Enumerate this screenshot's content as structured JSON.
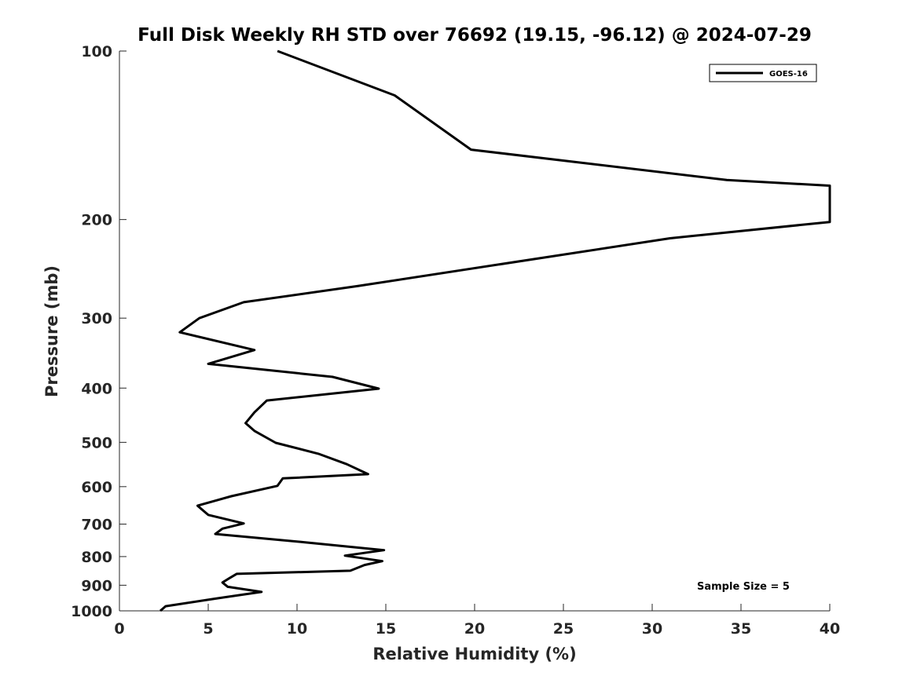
{
  "chart_data": {
    "type": "line",
    "title": "Full Disk Weekly RH STD over 76692 (19.15, -96.12) @ 2024-07-29",
    "xlabel": "Relative Humidity (%)",
    "ylabel": "Pressure (mb)",
    "xlim": [
      0,
      40
    ],
    "ylim": [
      1000,
      100
    ],
    "y_scale": "log",
    "x_ticks": [
      "0",
      "5",
      "10",
      "15",
      "20",
      "25",
      "30",
      "35",
      "40"
    ],
    "x_tick_values": [
      0,
      5,
      10,
      15,
      20,
      25,
      30,
      35,
      40
    ],
    "y_ticks": [
      "100",
      "200",
      "300",
      "400",
      "500",
      "600",
      "700",
      "800",
      "900",
      "1000"
    ],
    "y_tick_values": [
      100,
      200,
      300,
      400,
      500,
      600,
      700,
      800,
      900,
      1000
    ],
    "grid": false,
    "legend_position": "top-right",
    "annotation": "Sample Size = 5",
    "series": [
      {
        "name": "GOES-16",
        "color": "#000000",
        "points": [
          [
            8.9,
            100
          ],
          [
            15.5,
            120
          ],
          [
            19.8,
            150
          ],
          [
            34.2,
            170
          ],
          [
            40.0,
            174
          ],
          [
            40.0,
            202
          ],
          [
            31.0,
            216
          ],
          [
            13.4,
            263
          ],
          [
            7.0,
            281
          ],
          [
            4.5,
            300
          ],
          [
            3.4,
            318
          ],
          [
            7.6,
            342
          ],
          [
            5.0,
            362
          ],
          [
            12.0,
            382
          ],
          [
            14.6,
            401
          ],
          [
            8.3,
            421
          ],
          [
            7.6,
            442
          ],
          [
            7.1,
            462
          ],
          [
            7.6,
            477
          ],
          [
            8.8,
            501
          ],
          [
            11.2,
            524
          ],
          [
            12.8,
            547
          ],
          [
            14.0,
            570
          ],
          [
            9.2,
            580
          ],
          [
            8.9,
            598
          ],
          [
            6.3,
            624
          ],
          [
            4.4,
            649
          ],
          [
            5.0,
            674
          ],
          [
            7.0,
            698
          ],
          [
            5.8,
            713
          ],
          [
            5.4,
            729
          ],
          [
            10.4,
            754
          ],
          [
            14.9,
            779
          ],
          [
            12.7,
            797
          ],
          [
            14.8,
            815
          ],
          [
            13.8,
            828
          ],
          [
            13.0,
            848
          ],
          [
            6.6,
            859
          ],
          [
            6.2,
            874
          ],
          [
            5.8,
            890
          ],
          [
            6.1,
            906
          ],
          [
            8.0,
            925
          ],
          [
            5.5,
            950
          ],
          [
            2.6,
            981
          ],
          [
            2.3,
            1000
          ]
        ]
      }
    ]
  }
}
